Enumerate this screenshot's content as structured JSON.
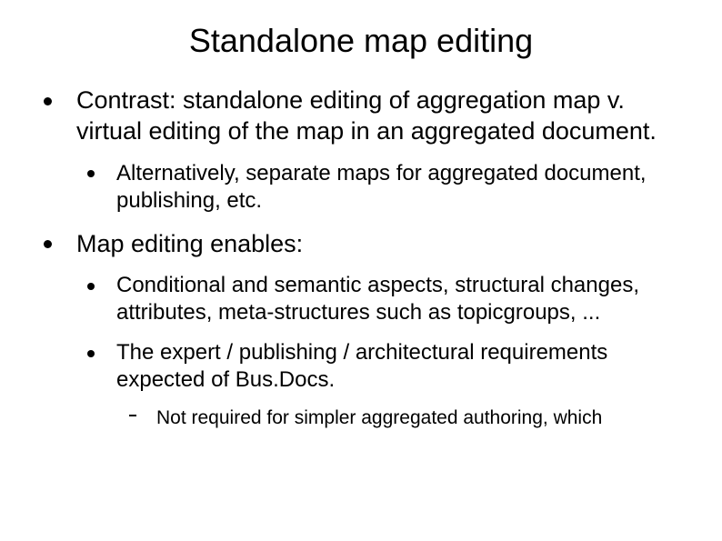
{
  "slide": {
    "title": "Standalone map editing",
    "bullets": [
      {
        "text": "Contrast: standalone editing of aggregation map v. virtual editing of the map in an aggregated document.",
        "children": [
          {
            "text": "Alternatively, separate maps for aggregated document, publishing, etc."
          }
        ]
      },
      {
        "text": "Map editing enables:",
        "children": [
          {
            "text": "Conditional and semantic aspects, structural changes, attributes, meta-structures such as topicgroups, ..."
          },
          {
            "text": "The expert / publishing / architectural requirements expected of Bus.Docs.",
            "children": [
              {
                "text": "Not required for simpler aggregated authoring, which"
              }
            ]
          }
        ]
      }
    ]
  },
  "style": {
    "background_color": "#ffffff",
    "text_color": "#000000",
    "font_family": "Arial",
    "title_fontsize": 36,
    "lvl1_fontsize": 27,
    "lvl2_fontsize": 24,
    "lvl3_fontsize": 21,
    "bullet_lvl1": "disc",
    "bullet_lvl2": "disc",
    "bullet_lvl3": "dash"
  }
}
